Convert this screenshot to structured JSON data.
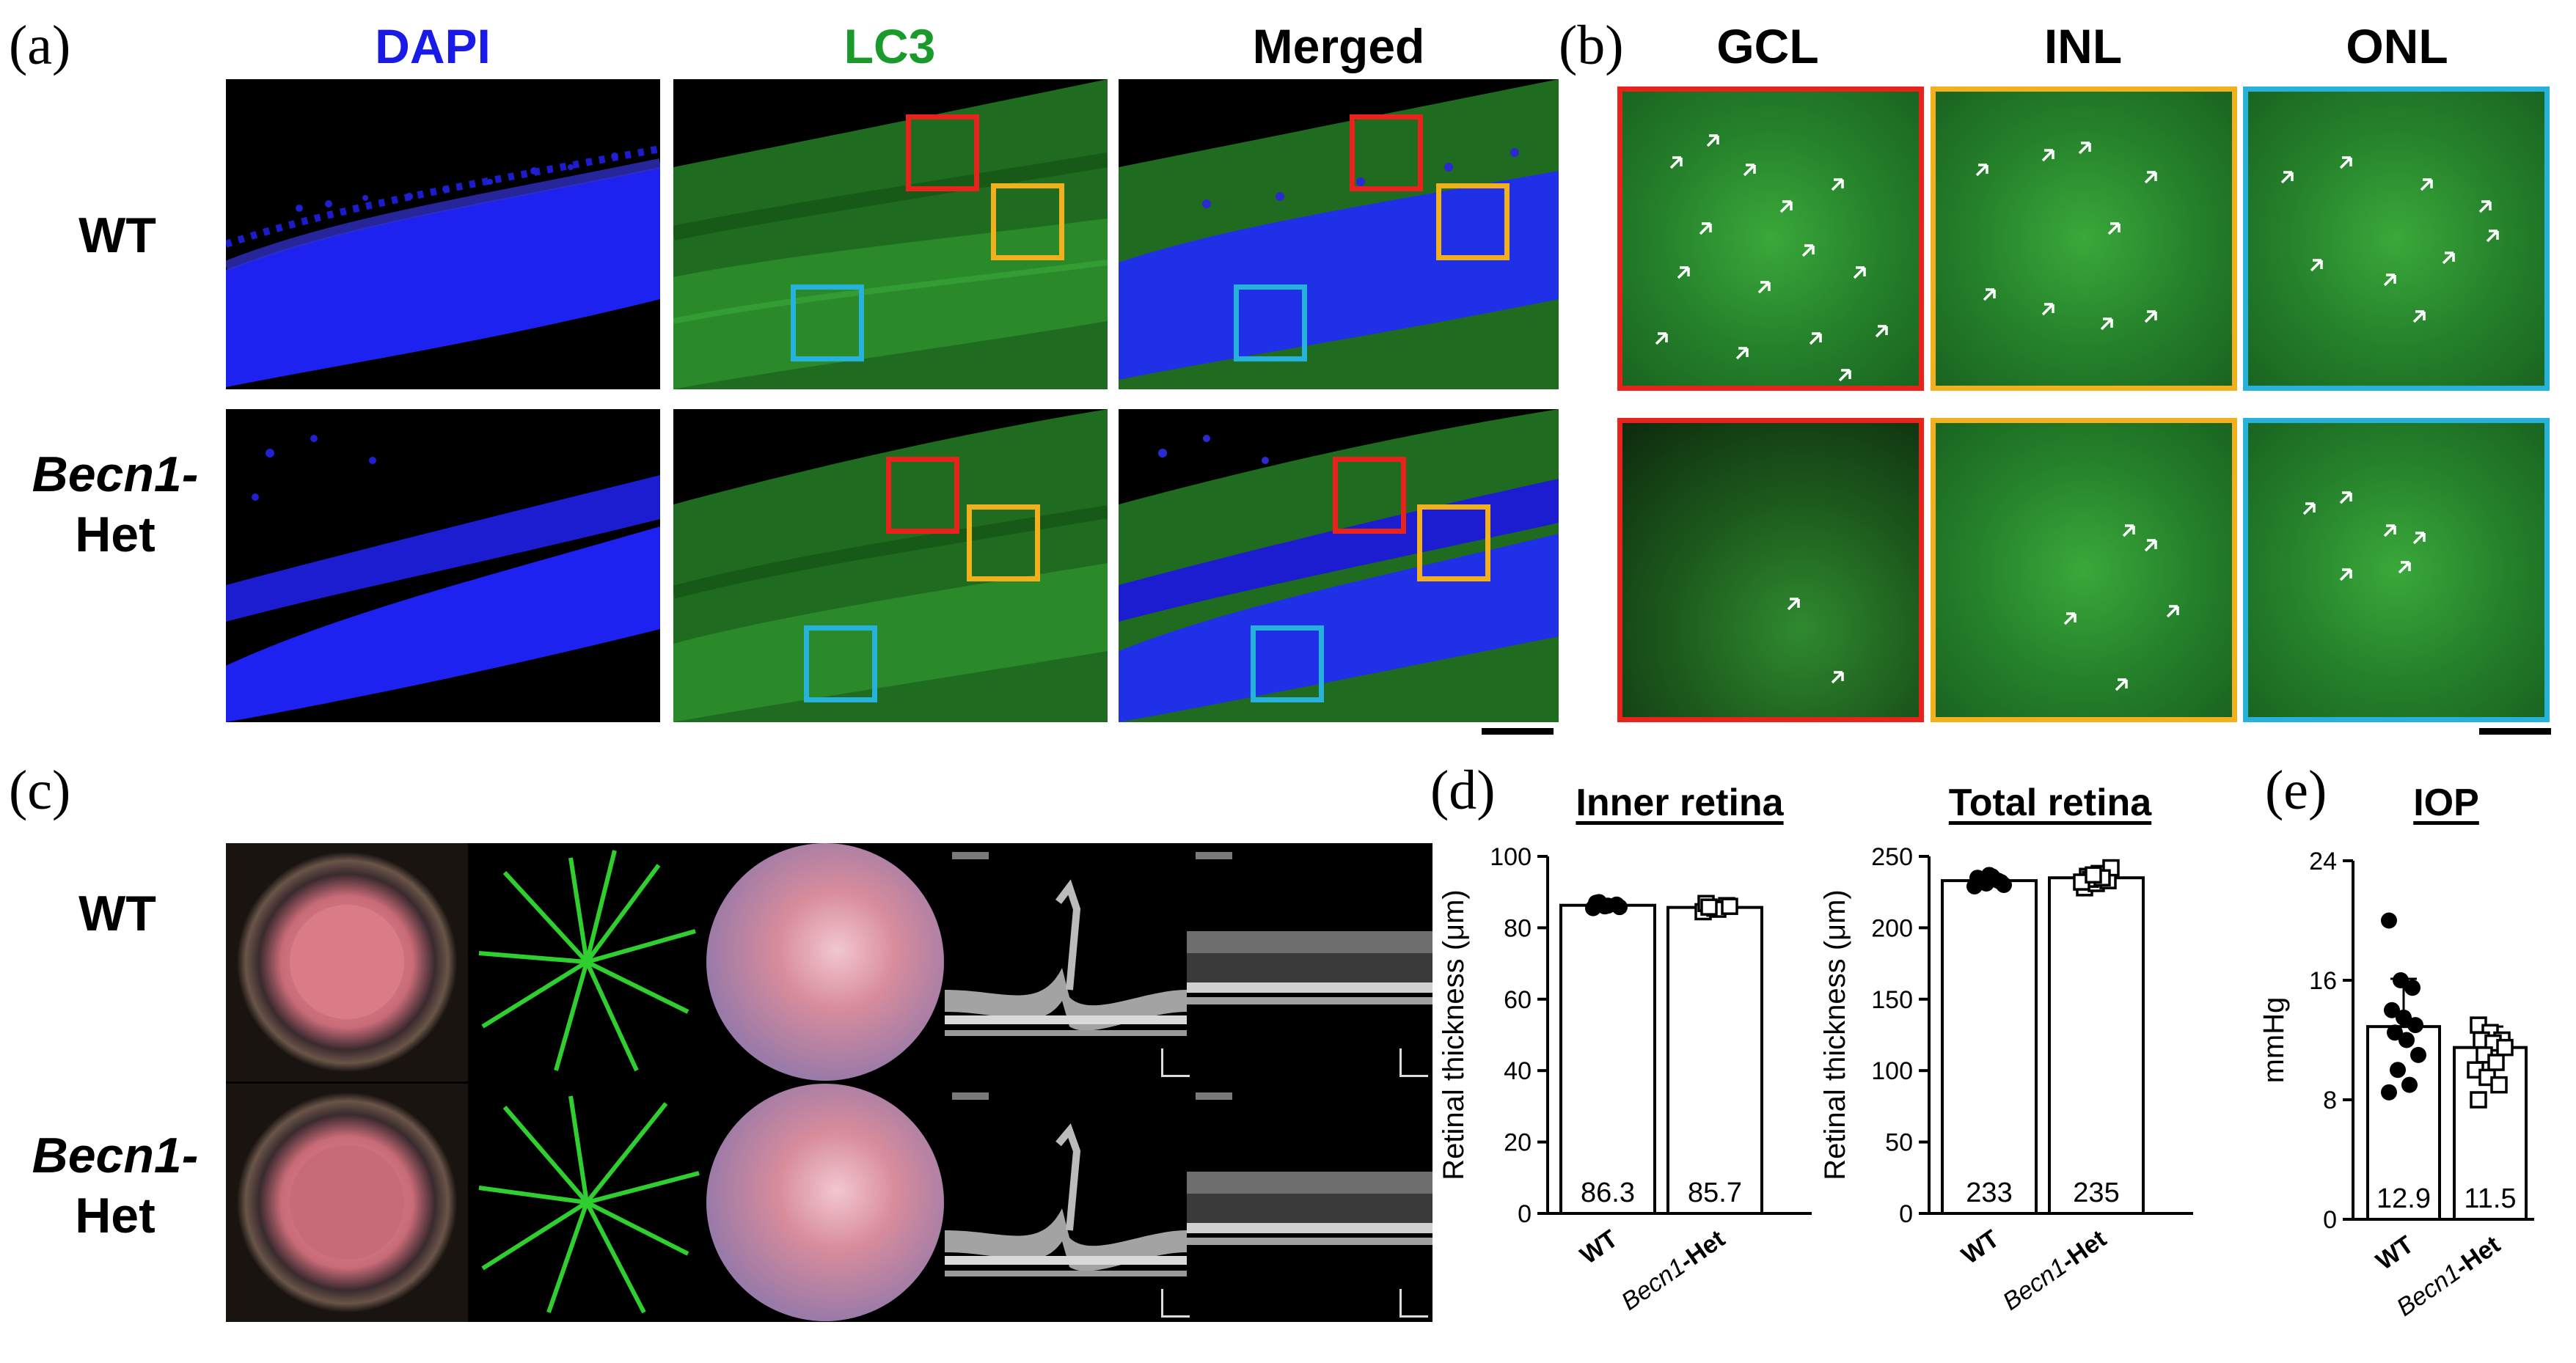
{
  "panel_labels": {
    "a": "(a)",
    "b": "(b)",
    "c": "(c)",
    "d": "(d)",
    "e": "(e)"
  },
  "panel_a": {
    "columns": [
      {
        "label": "DAPI",
        "color": "#1a1ae6"
      },
      {
        "label": "LC3",
        "color": "#1a9a2a"
      },
      {
        "label": "Merged",
        "color": "#000000"
      }
    ],
    "rows": [
      {
        "label_lines": [
          "WT"
        ]
      },
      {
        "label_lines": [
          "Becn1-",
          "Het"
        ]
      }
    ]
  },
  "panel_b": {
    "columns": [
      "GCL",
      "INL",
      "ONL"
    ],
    "frame_colors": [
      "#e8231c",
      "#f2b01c",
      "#27b2dc"
    ]
  },
  "panel_c": {
    "rows": [
      {
        "label_lines": [
          "WT"
        ]
      },
      {
        "label_lines": [
          "Becn1-",
          "Het"
        ]
      }
    ],
    "image_types": [
      "eye photograph",
      "fluorescein angiogram",
      "fundus photograph",
      "OCT optic nerve head",
      "OCT retina"
    ]
  },
  "colors": {
    "dapi_blue": "#1a1ae6",
    "lc3_green": "#1a9a2a",
    "roi_red": "#e8231c",
    "roi_yellow": "#f2b01c",
    "roi_cyan": "#27b2dc"
  },
  "chart_data": [
    {
      "panel": "(d)",
      "type": "bar",
      "title": "Inner retina",
      "ylabel": "Retinal thickness (μm)",
      "ylim": [
        0,
        100
      ],
      "yticks": [
        "0",
        "20",
        "40",
        "60",
        "80",
        "100"
      ],
      "categories": [
        "WT",
        "Becn1-Het"
      ],
      "values": [
        86.3,
        85.7
      ],
      "value_labels": [
        "86.3",
        "85.7"
      ],
      "points": [
        [
          85.5,
          86.0,
          86.5,
          87.0,
          86.2,
          85.8,
          87.2
        ],
        [
          84.5,
          85.5,
          86.2,
          86.8,
          85.2,
          86.0,
          85.8
        ]
      ],
      "markers": [
        "filled-circle",
        "open-square"
      ]
    },
    {
      "panel": "(d)",
      "type": "bar",
      "title": "Total retina",
      "ylabel": "Retinal thickness (μm)",
      "ylim": [
        0,
        250
      ],
      "yticks": [
        "0",
        "50",
        "100",
        "150",
        "200",
        "250"
      ],
      "categories": [
        "WT",
        "Becn1-Het"
      ],
      "values": [
        233,
        235
      ],
      "value_labels": [
        "233",
        "235"
      ],
      "points": [
        [
          229,
          231,
          233,
          235,
          237,
          232,
          234,
          236,
          230,
          233
        ],
        [
          228,
          231,
          233,
          236,
          238,
          242,
          234,
          235,
          232,
          237
        ]
      ],
      "markers": [
        "filled-circle",
        "open-square"
      ]
    },
    {
      "panel": "(e)",
      "type": "bar",
      "title": "IOP",
      "ylabel": "mmHg",
      "ylim": [
        0,
        24
      ],
      "yticks": [
        "0",
        "8",
        "16",
        "24"
      ],
      "categories": [
        "WT",
        "Becn1-Het"
      ],
      "values": [
        12.9,
        11.5
      ],
      "value_labels": [
        "12.9",
        "11.5"
      ],
      "error": [
        3.2,
        1.4
      ],
      "points": [
        [
          20,
          16,
          15.5,
          14,
          13.5,
          13,
          12.5,
          12,
          11,
          10,
          9,
          8.5
        ],
        [
          13,
          12.5,
          12,
          12,
          11.8,
          11.5,
          11,
          10.5,
          10,
          9.5,
          9,
          8
        ]
      ],
      "markers": [
        "filled-circle",
        "open-square"
      ]
    }
  ]
}
